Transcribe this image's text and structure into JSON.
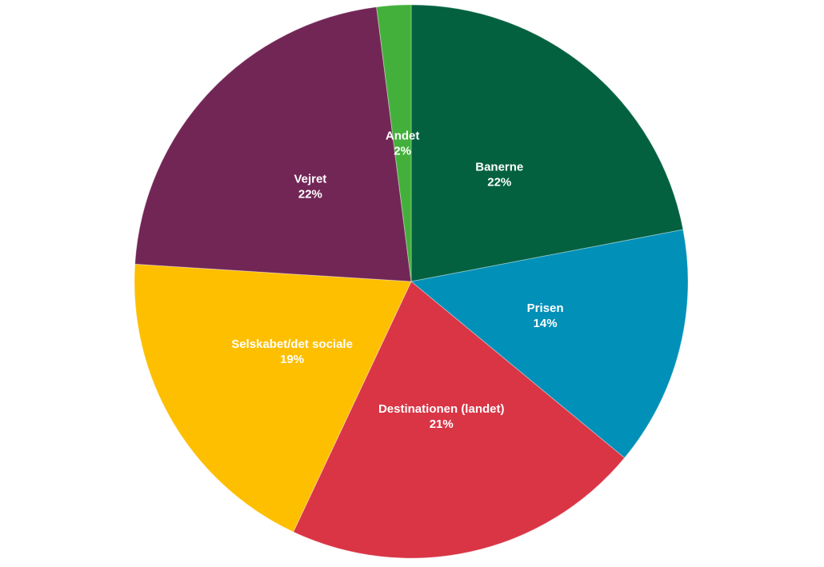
{
  "chart_data": {
    "type": "pie",
    "categories": [
      "Banerne",
      "Prisen",
      "Destinationen (landet)",
      "Selskabet/det sociale",
      "Vejret",
      "Andet"
    ],
    "values": [
      22,
      14,
      21,
      19,
      22,
      2
    ],
    "value_labels": [
      "22%",
      "14%",
      "21%",
      "19%",
      "22%",
      "2%"
    ],
    "colors": [
      "#036140",
      "#0190b8",
      "#d93545",
      "#fdbf00",
      "#722656",
      "#43b03b"
    ]
  }
}
